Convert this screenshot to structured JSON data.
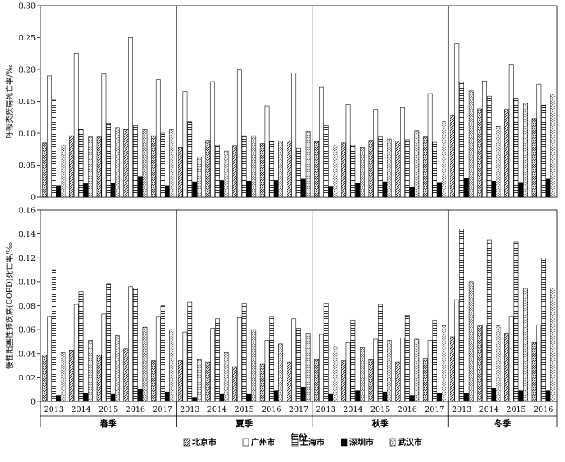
{
  "chart_data": {
    "type": "bar",
    "xlabel": "年份",
    "seasons": [
      "春季",
      "夏季",
      "秋季",
      "冬季"
    ],
    "years": [
      "2013",
      "2014",
      "2015",
      "2016",
      "2017"
    ],
    "legend": [
      "北京市",
      "广州市",
      "上海市",
      "深圳市",
      "武汉市"
    ],
    "legend_position": "bottom",
    "panels": [
      {
        "ylabel": "呼吸类疾病死亡率/‰",
        "ylim": [
          0,
          0.3
        ],
        "yticks": [
          "0",
          "0.05",
          "0.10",
          "0.15",
          "0.20",
          "0.25",
          "0.30"
        ],
        "series": [
          {
            "name": "北京市",
            "values": [
              0.085,
              0.096,
              0.094,
              0.106,
              0.096,
              0.078,
              0.089,
              0.08,
              0.084,
              0.088,
              0.087,
              0.085,
              0.089,
              0.088,
              0.094,
              0.127,
              0.138,
              0.137,
              0.123
            ]
          },
          {
            "name": "广州市",
            "values": [
              0.19,
              0.225,
              0.193,
              0.25,
              0.184,
              0.165,
              0.181,
              0.199,
              0.143,
              0.194,
              0.172,
              0.145,
              0.137,
              0.14,
              0.162,
              0.241,
              0.182,
              0.208,
              0.177
            ]
          },
          {
            "name": "上海市",
            "values": [
              0.152,
              0.106,
              0.116,
              0.112,
              0.1,
              0.118,
              0.081,
              0.096,
              0.087,
              0.077,
              0.112,
              0.081,
              0.094,
              0.09,
              0.086,
              0.18,
              0.158,
              0.155,
              0.144
            ]
          },
          {
            "name": "深圳市",
            "values": [
              0.018,
              0.021,
              0.022,
              0.032,
              0.018,
              0.024,
              0.026,
              0.025,
              0.026,
              0.028,
              0.017,
              0.022,
              0.024,
              0.015,
              0.023,
              0.029,
              0.025,
              0.023,
              0.028
            ]
          },
          {
            "name": "武汉市",
            "values": [
              0.082,
              0.094,
              0.109,
              0.106,
              0.106,
              0.063,
              0.072,
              0.096,
              0.088,
              0.103,
              0.082,
              0.078,
              0.091,
              0.104,
              0.118,
              0.166,
              0.111,
              0.147,
              0.161
            ]
          }
        ]
      },
      {
        "ylabel": "慢性阻塞性肺疾病(COPD)死亡率/‰",
        "ylim": [
          0,
          0.16
        ],
        "yticks": [
          "0",
          "0.02",
          "0.04",
          "0.06",
          "0.08",
          "0.10",
          "0.12",
          "0.14",
          "0.16"
        ],
        "series": [
          {
            "name": "北京市",
            "values": [
              0.039,
              0.043,
              0.039,
              0.044,
              0.034,
              0.034,
              0.033,
              0.029,
              0.031,
              0.033,
              0.035,
              0.034,
              0.035,
              0.033,
              0.036,
              0.054,
              0.063,
              0.057,
              0.049
            ]
          },
          {
            "name": "广州市",
            "values": [
              0.071,
              0.081,
              0.073,
              0.096,
              0.071,
              0.058,
              0.061,
              0.07,
              0.051,
              0.069,
              0.056,
              0.049,
              0.052,
              0.053,
              0.051,
              0.085,
              0.064,
              0.071,
              0.064
            ]
          },
          {
            "name": "上海市",
            "values": [
              0.11,
              0.092,
              0.098,
              0.095,
              0.08,
              0.083,
              0.069,
              0.082,
              0.071,
              0.061,
              0.082,
              0.068,
              0.081,
              0.072,
              0.068,
              0.144,
              0.135,
              0.133,
              0.12
            ]
          },
          {
            "name": "深圳市",
            "values": [
              0.005,
              0.007,
              0.006,
              0.01,
              0.008,
              0.003,
              0.006,
              0.006,
              0.009,
              0.012,
              0.006,
              0.009,
              0.008,
              0.005,
              0.007,
              0.007,
              0.011,
              0.009,
              0.009
            ]
          },
          {
            "name": "武汉市",
            "values": [
              0.041,
              0.051,
              0.055,
              0.062,
              0.06,
              0.035,
              0.041,
              0.06,
              0.048,
              0.057,
              0.046,
              0.045,
              0.051,
              0.052,
              0.063,
              0.1,
              0.063,
              0.095,
              0.095
            ]
          }
        ]
      }
    ]
  }
}
